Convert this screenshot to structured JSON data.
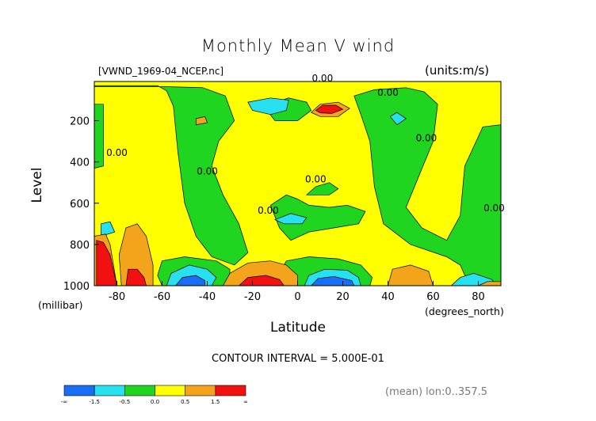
{
  "title": "Monthly Mean V wind",
  "dataset_label": "[VWND_1969-04_NCEP.nc]",
  "units_label": "(units:m/s)",
  "contour_interval_label": "CONTOUR INTERVAL = 5.000E-01",
  "mean_label": "(mean) lon:0..357.5",
  "chart_data": {
    "type": "heatmap",
    "title": "Monthly Mean V wind",
    "xlabel": "Latitude",
    "xunit": "(degrees_north)",
    "ylabel": "Level",
    "yunit": "(millibar)",
    "xlim": [
      -90,
      90
    ],
    "ylim": [
      1000,
      10
    ],
    "x_ticks": [
      -80,
      -60,
      -40,
      -20,
      0,
      20,
      40,
      60,
      80
    ],
    "y_ticks": [
      200,
      400,
      600,
      800,
      1000
    ],
    "contour_interval": 0.5,
    "zero_labels": [
      {
        "text": "0.00",
        "lat": 11,
        "lev": 10
      },
      {
        "text": "0.00",
        "lat": 40,
        "lev": 80
      },
      {
        "text": "0.00",
        "lat": -80,
        "lev": 370
      },
      {
        "text": "0.00",
        "lat": -40,
        "lev": 460
      },
      {
        "text": "0.00",
        "lat": 8,
        "lev": 500
      },
      {
        "text": "0.00",
        "lat": -13,
        "lev": 650
      },
      {
        "text": "0.00",
        "lat": 57,
        "lev": 300
      },
      {
        "text": "0.00",
        "lat": 87,
        "lev": 640
      }
    ],
    "colorbar": {
      "colors": [
        "#1a6ef5",
        "#27e0f0",
        "#1fd51f",
        "#ffff00",
        "#f4a41a",
        "#f21111"
      ],
      "tick_labels": [
        "-∞",
        "-1.5",
        "-0.5",
        "0.0",
        "0.5",
        "1.5",
        "∞"
      ]
    },
    "regions": [
      {
        "color": "#ffff00",
        "lat": [
          -90,
          90
        ],
        "lev": [
          10,
          1000
        ]
      },
      {
        "color": "#1fd51f",
        "poly": [
          [
            -90,
            30
          ],
          [
            -62,
            30
          ],
          [
            -58,
            55
          ],
          [
            -55,
            130
          ],
          [
            -53,
            350
          ],
          [
            -50,
            600
          ],
          [
            -45,
            760
          ],
          [
            -38,
            860
          ],
          [
            -28,
            900
          ],
          [
            -22,
            840
          ],
          [
            -26,
            700
          ],
          [
            -33,
            560
          ],
          [
            -38,
            420
          ],
          [
            -35,
            300
          ],
          [
            -28,
            200
          ],
          [
            -32,
            80
          ],
          [
            -42,
            40
          ],
          [
            -58,
            35
          ],
          [
            -90,
            35
          ]
        ]
      },
      {
        "color": "#1fd51f",
        "poly": [
          [
            -90,
            120
          ],
          [
            -86,
            120
          ],
          [
            -86,
            420
          ],
          [
            -90,
            430
          ]
        ]
      },
      {
        "color": "#1fd51f",
        "poly": [
          [
            -60,
            1000
          ],
          [
            -62,
            950
          ],
          [
            -60,
            880
          ],
          [
            -50,
            860
          ],
          [
            -36,
            880
          ],
          [
            -30,
            920
          ],
          [
            -30,
            1000
          ]
        ]
      },
      {
        "color": "#1fd51f",
        "poly": [
          [
            -12,
            610
          ],
          [
            -5,
            560
          ],
          [
            0,
            580
          ],
          [
            5,
            610
          ],
          [
            14,
            620
          ],
          [
            22,
            610
          ],
          [
            30,
            640
          ],
          [
            27,
            700
          ],
          [
            16,
            720
          ],
          [
            5,
            740
          ],
          [
            -3,
            780
          ],
          [
            -8,
            720
          ]
        ]
      },
      {
        "color": "#1fd51f",
        "poly": [
          [
            4,
            560
          ],
          [
            8,
            520
          ],
          [
            14,
            500
          ],
          [
            18,
            530
          ],
          [
            14,
            560
          ]
        ]
      },
      {
        "color": "#1fd51f",
        "poly": [
          [
            -5,
            880
          ],
          [
            5,
            860
          ],
          [
            18,
            870
          ],
          [
            28,
            900
          ],
          [
            33,
            960
          ],
          [
            32,
            1000
          ],
          [
            -5,
            1000
          ],
          [
            -8,
            940
          ]
        ]
      },
      {
        "color": "#1fd51f",
        "poly": [
          [
            25,
            80
          ],
          [
            34,
            50
          ],
          [
            48,
            40
          ],
          [
            56,
            60
          ],
          [
            62,
            120
          ],
          [
            60,
            300
          ],
          [
            54,
            460
          ],
          [
            48,
            620
          ],
          [
            55,
            720
          ],
          [
            66,
            780
          ],
          [
            72,
            660
          ],
          [
            74,
            420
          ],
          [
            82,
            230
          ],
          [
            90,
            220
          ],
          [
            90,
            1000
          ],
          [
            76,
            1000
          ],
          [
            72,
            900
          ],
          [
            66,
            860
          ],
          [
            50,
            800
          ],
          [
            38,
            700
          ],
          [
            34,
            520
          ],
          [
            32,
            300
          ],
          [
            28,
            170
          ]
        ]
      },
      {
        "color": "#1fd51f",
        "poly": [
          [
            -15,
            130
          ],
          [
            -4,
            90
          ],
          [
            4,
            110
          ],
          [
            6,
            150
          ],
          [
            0,
            200
          ],
          [
            -10,
            200
          ]
        ]
      },
      {
        "color": "#27e0f0",
        "poly": [
          [
            -22,
            110
          ],
          [
            -12,
            90
          ],
          [
            -4,
            100
          ],
          [
            -5,
            150
          ],
          [
            -12,
            170
          ],
          [
            -20,
            150
          ]
        ]
      },
      {
        "color": "#27e0f0",
        "poly": [
          [
            41,
            180
          ],
          [
            44,
            160
          ],
          [
            48,
            190
          ],
          [
            44,
            220
          ]
        ]
      },
      {
        "color": "#27e0f0",
        "poly": [
          [
            -10,
            680
          ],
          [
            -3,
            650
          ],
          [
            4,
            670
          ],
          [
            2,
            700
          ],
          [
            -6,
            700
          ]
        ]
      },
      {
        "color": "#27e0f0",
        "poly": [
          [
            -87,
            700
          ],
          [
            -83,
            690
          ],
          [
            -81,
            740
          ],
          [
            -87,
            760
          ]
        ]
      },
      {
        "color": "#27e0f0",
        "poly": [
          [
            -58,
            1000
          ],
          [
            -56,
            940
          ],
          [
            -48,
            900
          ],
          [
            -40,
            920
          ],
          [
            -36,
            960
          ],
          [
            -38,
            1000
          ]
        ]
      },
      {
        "color": "#27e0f0",
        "poly": [
          [
            3,
            1000
          ],
          [
            5,
            950
          ],
          [
            12,
            920
          ],
          [
            22,
            925
          ],
          [
            27,
            960
          ],
          [
            28,
            1000
          ]
        ]
      },
      {
        "color": "#27e0f0",
        "poly": [
          [
            68,
            1000
          ],
          [
            72,
            960
          ],
          [
            78,
            940
          ],
          [
            86,
            970
          ],
          [
            88,
            1000
          ]
        ]
      },
      {
        "color": "#1a6ef5",
        "poly": [
          [
            -54,
            1000
          ],
          [
            -51,
            960
          ],
          [
            -45,
            950
          ],
          [
            -41,
            975
          ],
          [
            -41,
            1000
          ]
        ]
      },
      {
        "color": "#1a6ef5",
        "poly": [
          [
            6,
            1000
          ],
          [
            9,
            965
          ],
          [
            16,
            955
          ],
          [
            24,
            975
          ],
          [
            25,
            1000
          ]
        ]
      },
      {
        "color": "#f4a41a",
        "poly": [
          [
            -45,
            190
          ],
          [
            -41,
            180
          ],
          [
            -40,
            210
          ],
          [
            -45,
            220
          ]
        ]
      },
      {
        "color": "#f4a41a",
        "poly": [
          [
            -78,
            1000
          ],
          [
            -79,
            850
          ],
          [
            -76,
            720
          ],
          [
            -71,
            700
          ],
          [
            -67,
            760
          ],
          [
            -64,
            900
          ],
          [
            -64,
            1000
          ]
        ]
      },
      {
        "color": "#f4a41a",
        "poly": [
          [
            -90,
            760
          ],
          [
            -85,
            750
          ],
          [
            -83,
            800
          ],
          [
            -80,
            1000
          ],
          [
            -90,
            1000
          ]
        ]
      },
      {
        "color": "#f4a41a",
        "poly": [
          [
            -33,
            1000
          ],
          [
            -30,
            940
          ],
          [
            -22,
            890
          ],
          [
            -12,
            880
          ],
          [
            -5,
            900
          ],
          [
            0,
            950
          ],
          [
            0,
            1000
          ]
        ]
      },
      {
        "color": "#f4a41a",
        "poly": [
          [
            40,
            1000
          ],
          [
            42,
            920
          ],
          [
            50,
            900
          ],
          [
            58,
            930
          ],
          [
            60,
            1000
          ]
        ]
      },
      {
        "color": "#f4a41a",
        "poly": [
          [
            80,
            1000
          ],
          [
            84,
            980
          ],
          [
            90,
            980
          ],
          [
            90,
            1000
          ]
        ]
      },
      {
        "color": "#f4a41a",
        "poly": [
          [
            6,
            160
          ],
          [
            10,
            120
          ],
          [
            18,
            110
          ],
          [
            23,
            140
          ],
          [
            18,
            180
          ],
          [
            10,
            180
          ]
        ]
      },
      {
        "color": "#f21111",
        "poly": [
          [
            8,
            150
          ],
          [
            11,
            125
          ],
          [
            17,
            125
          ],
          [
            20,
            145
          ],
          [
            15,
            165
          ],
          [
            10,
            162
          ]
        ]
      },
      {
        "color": "#f21111",
        "poly": [
          [
            -89,
            780
          ],
          [
            -86,
            790
          ],
          [
            -83,
            850
          ],
          [
            -80,
            1000
          ],
          [
            -89,
            1000
          ]
        ]
      },
      {
        "color": "#f21111",
        "poly": [
          [
            -76,
            1000
          ],
          [
            -75,
            920
          ],
          [
            -71,
            920
          ],
          [
            -68,
            960
          ],
          [
            -67,
            1000
          ]
        ]
      },
      {
        "color": "#f21111",
        "poly": [
          [
            -26,
            1000
          ],
          [
            -22,
            960
          ],
          [
            -14,
            950
          ],
          [
            -8,
            970
          ],
          [
            -6,
            1000
          ]
        ]
      }
    ]
  }
}
